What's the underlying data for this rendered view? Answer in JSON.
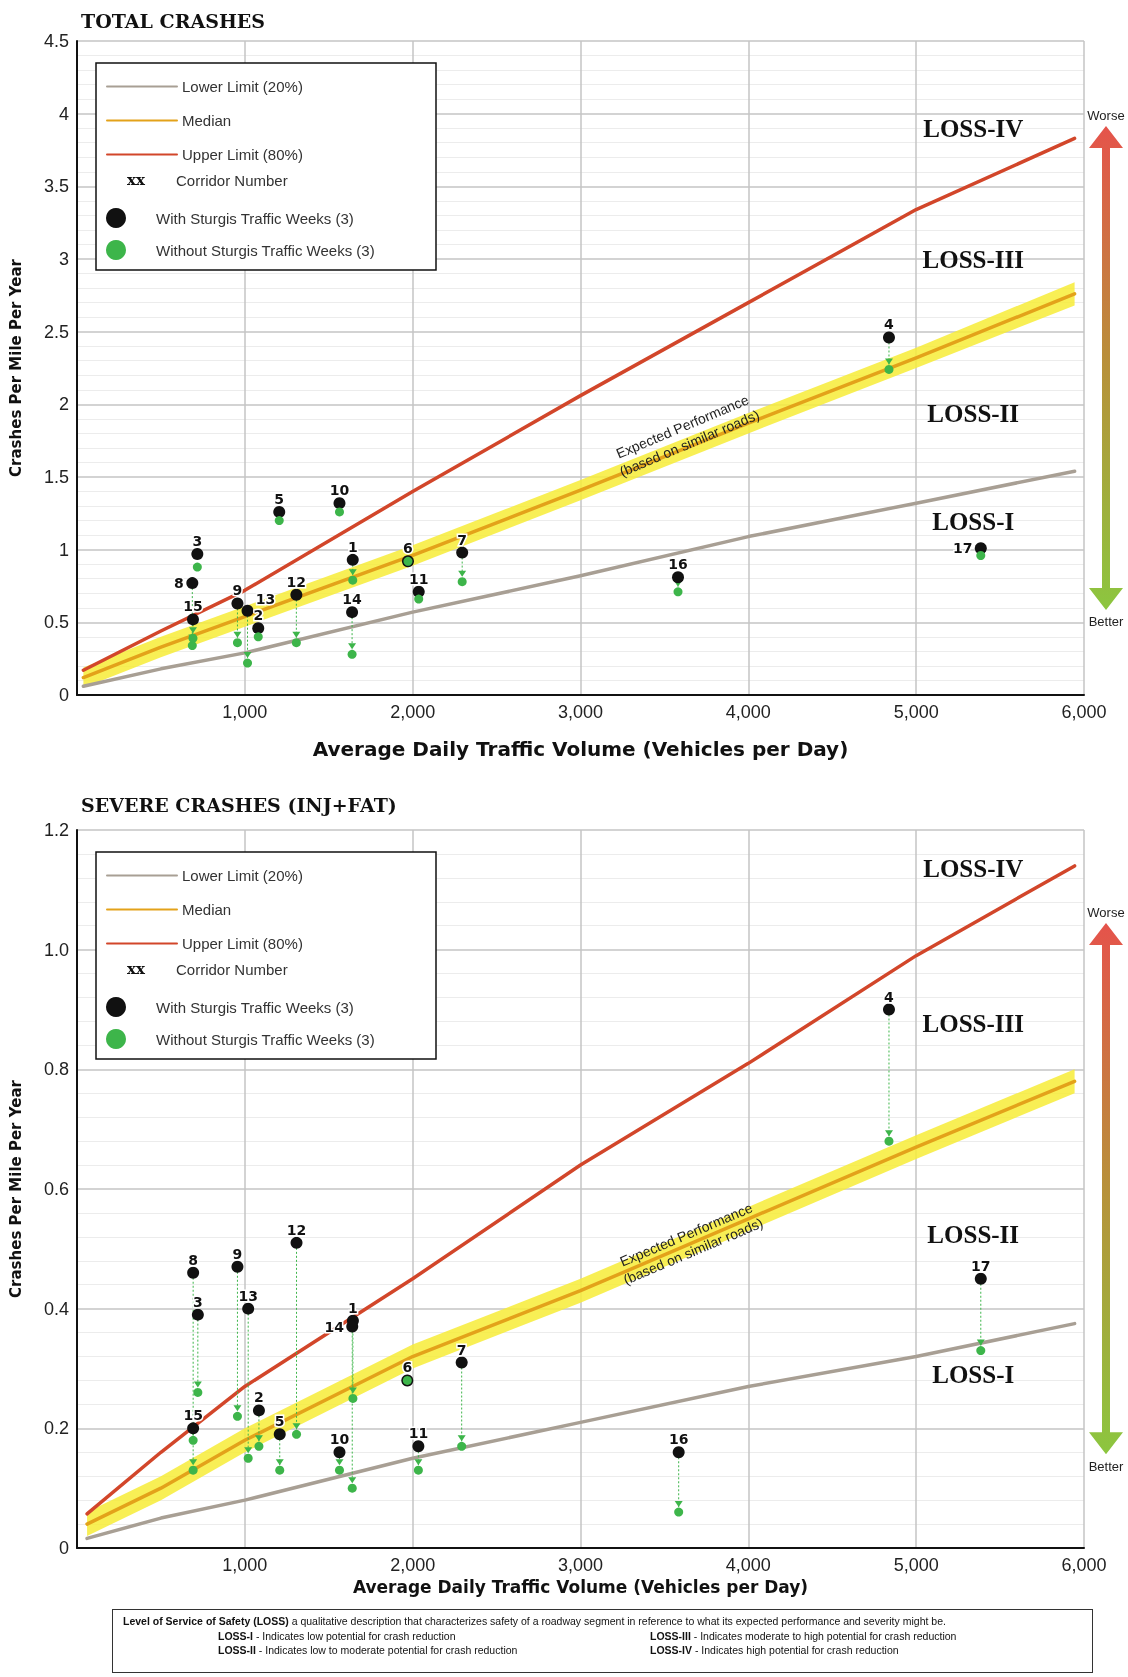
{
  "chart_data": [
    {
      "type": "scatter",
      "title": "TOTAL CRASHES",
      "xlabel": "Average Daily Traffic Volume (Vehicles per Day)",
      "ylabel": "Crashes Per Mile Per Year",
      "xlim": [
        0,
        6000
      ],
      "ylim": [
        0,
        4.5
      ],
      "xticks": [
        {
          "value": 1000,
          "label": "1,000"
        },
        {
          "value": 2000,
          "label": "2,000"
        },
        {
          "value": 3000,
          "label": "3,000"
        },
        {
          "value": 4000,
          "label": "4,000"
        },
        {
          "value": 5000,
          "label": "5,000"
        },
        {
          "value": 6000,
          "label": "6,000"
        }
      ],
      "yticks": [
        0,
        0.5,
        1,
        1.5,
        2,
        2.5,
        3,
        3.5,
        4,
        4.5
      ],
      "grid": true,
      "legend": "top left",
      "series": [
        {
          "name": "Lower Limit (20%)",
          "type": "line",
          "marker": "none",
          "color": "#a89f94",
          "x": [
            38,
            500,
            1000,
            2000,
            3000,
            4000,
            5000,
            5944
          ],
          "values": [
            0.06,
            0.18,
            0.29,
            0.57,
            0.82,
            1.09,
            1.32,
            1.54
          ]
        },
        {
          "name": "Median",
          "type": "line",
          "marker": "none",
          "color": "#e3a21a",
          "x": [
            38,
            500,
            1000,
            2000,
            3000,
            4000,
            5000,
            5944
          ],
          "values": [
            0.12,
            0.33,
            0.54,
            0.96,
            1.41,
            1.87,
            2.32,
            2.76
          ],
          "lower": [
            0.05,
            0.26,
            0.47,
            0.89,
            1.34,
            1.8,
            2.25,
            2.68
          ],
          "upper": [
            0.19,
            0.4,
            0.61,
            1.03,
            1.48,
            1.94,
            2.39,
            2.84
          ]
        },
        {
          "name": "Upper Limit (80%)",
          "type": "line",
          "marker": "none",
          "color": "#d2462a",
          "x": [
            38,
            500,
            1000,
            2000,
            3000,
            4000,
            5000,
            5944
          ],
          "values": [
            0.17,
            0.44,
            0.72,
            1.4,
            2.06,
            2.7,
            3.34,
            3.83
          ]
        },
        {
          "name": "With Sturgis Traffic Weeks (3)",
          "type": "scatter",
          "marker": "circle",
          "color": "#111111",
          "x": [
            1643,
            1080,
            717,
            4838,
            1205,
            1972,
            2295,
            687,
            956,
            1564,
            2036,
            1307,
            1016,
            1639,
            691,
            3581,
            5385
          ],
          "values": [
            0.93,
            0.46,
            0.97,
            2.46,
            1.26,
            0.92,
            0.98,
            0.77,
            0.63,
            1.32,
            0.71,
            0.69,
            0.58,
            0.57,
            0.52,
            0.81,
            1.01
          ]
        },
        {
          "name": "Without Sturgis Traffic Weeks (3)",
          "type": "scatter",
          "marker": "circle",
          "color": "#3db54a",
          "x": [
            1643,
            1080,
            717,
            4838,
            1205,
            1972,
            2295,
            687,
            956,
            1564,
            2036,
            1307,
            1016,
            1639,
            691,
            3581,
            5385
          ],
          "values": [
            0.79,
            0.4,
            0.88,
            2.24,
            1.2,
            0.92,
            0.78,
            0.34,
            0.36,
            1.26,
            0.66,
            0.36,
            0.22,
            0.28,
            0.39,
            0.71,
            0.96
          ]
        }
      ],
      "annotations": [
        "xx Corridor Number",
        "Worse",
        "Better",
        "LOSS-IV",
        "LOSS-III",
        "LOSS-II",
        "LOSS-I",
        {
          "text": "Expected Performance\n(based on similar roads)",
          "x": 3628,
          "y": 1.79
        },
        {
          "text": "1",
          "x": 1643,
          "y": 0.93
        },
        {
          "text": "2",
          "x": 1080,
          "y": 0.46
        },
        {
          "text": "3",
          "x": 717,
          "y": 0.97
        },
        {
          "text": "4",
          "x": 4838,
          "y": 2.46
        },
        {
          "text": "5",
          "x": 1205,
          "y": 1.26
        },
        {
          "text": "6",
          "x": 1972,
          "y": 0.92
        },
        {
          "text": "7",
          "x": 2295,
          "y": 0.98
        },
        {
          "text": "8",
          "x": 687,
          "y": 0.77
        },
        {
          "text": "9",
          "x": 956,
          "y": 0.63
        },
        {
          "text": "10",
          "x": 1564,
          "y": 1.32
        },
        {
          "text": "11",
          "x": 2036,
          "y": 0.71
        },
        {
          "text": "12",
          "x": 1307,
          "y": 0.69
        },
        {
          "text": "13",
          "x": 1016,
          "y": 0.58
        },
        {
          "text": "14",
          "x": 1639,
          "y": 0.57
        },
        {
          "text": "15",
          "x": 691,
          "y": 0.52
        },
        {
          "text": "16",
          "x": 3581,
          "y": 0.81
        },
        {
          "text": "17",
          "x": 5385,
          "y": 1.01
        }
      ]
    },
    {
      "type": "scatter",
      "title": "SEVERE CRASHES (INJ+FAT)",
      "xlabel": "Average Daily Traffic Volume (Vehicles per Day)",
      "ylabel": "Crashes Per Mile Per Year",
      "xlim": [
        0,
        6000
      ],
      "ylim": [
        0,
        1.2
      ],
      "xticks": [
        {
          "value": 1000,
          "label": "1,000"
        },
        {
          "value": 2000,
          "label": "2,000"
        },
        {
          "value": 3000,
          "label": "3,000"
        },
        {
          "value": 4000,
          "label": "4,000"
        },
        {
          "value": 5000,
          "label": "5,000"
        },
        {
          "value": 6000,
          "label": "6,000"
        }
      ],
      "yticks": [
        0,
        0.2,
        0.4,
        0.6,
        0.8,
        {
          "value": 1,
          "label": "1.0"
        },
        1.2
      ],
      "grid": true,
      "legend": "top left",
      "series": [
        {
          "name": "Lower Limit (20%)",
          "type": "line",
          "marker": "none",
          "color": "#a89f94",
          "x": [
            60,
            500,
            1000,
            2000,
            3000,
            4000,
            5000,
            5944
          ],
          "values": [
            0.016,
            0.05,
            0.08,
            0.15,
            0.21,
            0.27,
            0.32,
            0.375
          ]
        },
        {
          "name": "Median",
          "type": "line",
          "marker": "none",
          "color": "#e3a21a",
          "x": [
            60,
            500,
            1000,
            2000,
            3000,
            4000,
            5000,
            5944
          ],
          "values": [
            0.04,
            0.1,
            0.18,
            0.32,
            0.43,
            0.55,
            0.67,
            0.78
          ],
          "lower": [
            0.02,
            0.08,
            0.16,
            0.3,
            0.41,
            0.53,
            0.65,
            0.76
          ],
          "upper": [
            0.06,
            0.12,
            0.2,
            0.34,
            0.45,
            0.57,
            0.69,
            0.8
          ]
        },
        {
          "name": "Upper Limit (80%)",
          "type": "line",
          "marker": "none",
          "color": "#d2462a",
          "x": [
            60,
            500,
            1000,
            2000,
            3000,
            4000,
            5000,
            5944
          ],
          "values": [
            0.057,
            0.16,
            0.27,
            0.45,
            0.64,
            0.81,
            0.99,
            1.14
          ]
        },
        {
          "name": "With Sturgis Traffic Weeks (3)",
          "type": "scatter",
          "marker": "circle",
          "color": "#111111",
          "x": [
            1644,
            1084,
            720,
            4838,
            1208,
            1968,
            2292,
            692,
            956,
            1564,
            2034,
            1308,
            1020,
            1640,
            692,
            3585,
            5385
          ],
          "values": [
            0.38,
            0.23,
            0.39,
            0.9,
            0.19,
            0.28,
            0.31,
            0.46,
            0.47,
            0.16,
            0.17,
            0.51,
            0.4,
            0.37,
            0.2,
            0.16,
            0.45
          ]
        },
        {
          "name": "Without Sturgis Traffic Weeks (3)",
          "type": "scatter",
          "marker": "circle",
          "color": "#3db54a",
          "x": [
            1644,
            1084,
            720,
            4838,
            1208,
            1968,
            2292,
            692,
            956,
            1564,
            2034,
            1308,
            1020,
            1640,
            692,
            3585,
            5385
          ],
          "values": [
            0.25,
            0.17,
            0.26,
            0.68,
            0.13,
            0.28,
            0.17,
            0.18,
            0.22,
            0.13,
            0.13,
            0.19,
            0.15,
            0.1,
            0.13,
            0.06,
            0.33
          ]
        }
      ],
      "annotations": [
        "xx Corridor Number",
        "Worse",
        "Better",
        "LOSS-IV",
        "LOSS-III",
        "LOSS-II",
        "LOSS-I",
        {
          "text": "Expected Performance\n(based on similar roads)",
          "x": 3650,
          "y": 0.51
        },
        {
          "text": "1",
          "x": 1644,
          "y": 0.38
        },
        {
          "text": "2",
          "x": 1084,
          "y": 0.23
        },
        {
          "text": "3",
          "x": 720,
          "y": 0.39
        },
        {
          "text": "4",
          "x": 4838,
          "y": 0.9
        },
        {
          "text": "5",
          "x": 1208,
          "y": 0.19
        },
        {
          "text": "6",
          "x": 1968,
          "y": 0.28
        },
        {
          "text": "7",
          "x": 2292,
          "y": 0.31
        },
        {
          "text": "8",
          "x": 692,
          "y": 0.46
        },
        {
          "text": "9",
          "x": 956,
          "y": 0.47
        },
        {
          "text": "10",
          "x": 1564,
          "y": 0.16
        },
        {
          "text": "11",
          "x": 2034,
          "y": 0.17
        },
        {
          "text": "12",
          "x": 1308,
          "y": 0.51
        },
        {
          "text": "13",
          "x": 1020,
          "y": 0.4
        },
        {
          "text": "14",
          "x": 1640,
          "y": 0.37
        },
        {
          "text": "15",
          "x": 692,
          "y": 0.2
        },
        {
          "text": "16",
          "x": 3585,
          "y": 0.16
        },
        {
          "text": "17",
          "x": 5385,
          "y": 0.45
        }
      ]
    },
    {
      "type": "other",
      "title": "Level of Service of Safety (LOSS)",
      "subtitle": "a qualitative description that characterizes safety of a roadway segment in reference to what its expected performance and severity might be.",
      "annotations": [
        "LOSS-I - Indicates low potential for crash reduction",
        "LOSS-III - Indicates moderate to high potential for crash reduction",
        "LOSS-II - Indicates low to moderate potential for crash reduction",
        "LOSS-IV - Indicates high potential for crash reduction"
      ]
    }
  ]
}
